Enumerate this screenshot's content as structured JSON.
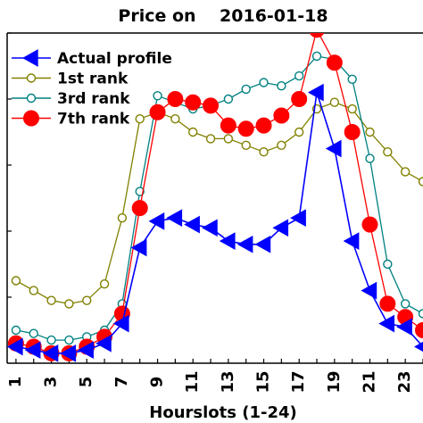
{
  "chart_data": {
    "type": "line",
    "title": "Price on    2016-01-18",
    "xlabel": "Hourslots (1-24)",
    "ylabel": "",
    "x": [
      1,
      2,
      3,
      4,
      5,
      6,
      7,
      8,
      9,
      10,
      11,
      12,
      13,
      14,
      15,
      16,
      17,
      18,
      19,
      20,
      21,
      22,
      23,
      24
    ],
    "xticks": [
      1,
      3,
      5,
      7,
      9,
      11,
      13,
      15,
      17,
      19,
      21,
      23
    ],
    "xlim": [
      0.5,
      24
    ],
    "ylim": [
      0,
      100
    ],
    "grid": false,
    "legend_position": "top-left",
    "series": [
      {
        "name": "Actual profile",
        "color": "#0000ff",
        "marker": "triangle-left",
        "values": [
          5,
          4,
          3,
          3,
          4,
          6,
          12,
          35,
          43,
          44,
          42,
          41,
          37,
          36,
          36,
          41,
          44,
          82,
          65,
          37,
          22,
          12,
          11,
          5
        ]
      },
      {
        "name": "1st rank",
        "color": "#808000",
        "marker": "open-circle",
        "values": [
          25,
          22,
          19,
          18,
          19,
          24,
          44,
          74,
          76,
          74,
          70,
          68,
          68,
          66,
          64,
          66,
          70,
          77,
          79,
          77,
          70,
          64,
          58,
          55
        ]
      },
      {
        "name": "3rd rank",
        "color": "#008080",
        "marker": "open-circle",
        "values": [
          10,
          9,
          7,
          7,
          8,
          10,
          18,
          52,
          81,
          79,
          77,
          78,
          80,
          83,
          85,
          84,
          87,
          93,
          92,
          86,
          62,
          30,
          18,
          15
        ]
      },
      {
        "name": "7th rank",
        "color": "#ff0000",
        "marker": "filled-circle",
        "values": [
          6,
          5,
          3,
          3,
          5,
          8,
          15,
          47,
          76,
          80,
          79,
          78,
          72,
          71,
          72,
          75,
          80,
          101,
          91,
          70,
          42,
          18,
          14,
          10
        ]
      }
    ]
  }
}
